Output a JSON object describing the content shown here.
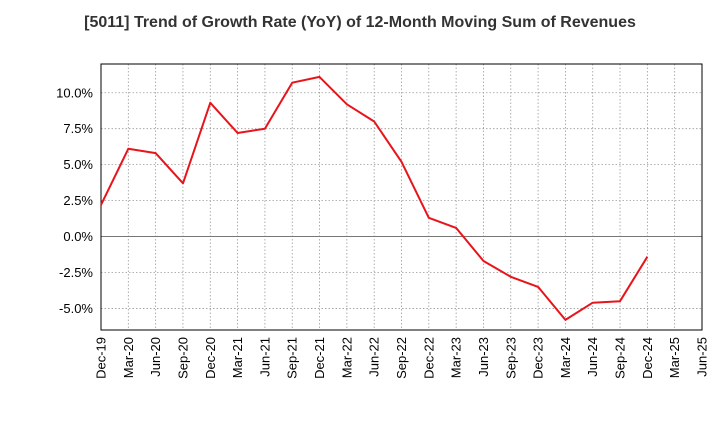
{
  "chart_data": {
    "type": "line",
    "title": "[5011]  Trend of Growth Rate (YoY) of 12-Month Moving Sum of Revenues",
    "xlabel": "",
    "ylabel": "",
    "x_ticks": [
      "Dec-19",
      "Mar-20",
      "Jun-20",
      "Sep-20",
      "Dec-20",
      "Mar-21",
      "Jun-21",
      "Sep-21",
      "Dec-21",
      "Mar-22",
      "Jun-22",
      "Sep-22",
      "Dec-22",
      "Mar-23",
      "Jun-23",
      "Sep-23",
      "Dec-23",
      "Mar-24",
      "Jun-24",
      "Sep-24",
      "Dec-24",
      "Mar-25",
      "Jun-25"
    ],
    "y_ticks": [
      {
        "value": 10.0,
        "label": "10.0%"
      },
      {
        "value": 7.5,
        "label": "7.5%"
      },
      {
        "value": 5.0,
        "label": "5.0%"
      },
      {
        "value": 2.5,
        "label": "2.5%"
      },
      {
        "value": 0.0,
        "label": "0.0%"
      },
      {
        "value": -2.5,
        "label": "-2.5%"
      },
      {
        "value": -5.0,
        "label": "-5.0%"
      }
    ],
    "ylim": [
      -6.5,
      12.0
    ],
    "grid": true,
    "line_color": "#e8141b",
    "series": [
      {
        "x": [
          "Dec-19",
          "Mar-20",
          "Jun-20",
          "Sep-20",
          "Dec-20",
          "Mar-21",
          "Jun-21",
          "Sep-21",
          "Dec-21",
          "Mar-22",
          "Jun-22",
          "Sep-22",
          "Dec-22",
          "Mar-23",
          "Jun-23",
          "Sep-23",
          "Dec-23",
          "Mar-24",
          "Jun-24",
          "Sep-24",
          "Dec-24"
        ],
        "values": [
          2.2,
          6.1,
          5.8,
          3.7,
          9.3,
          7.2,
          7.5,
          10.7,
          11.1,
          9.2,
          8.0,
          5.2,
          1.3,
          0.6,
          -1.7,
          -2.8,
          -3.5,
          -5.8,
          -4.6,
          -4.5,
          -1.4
        ]
      }
    ]
  }
}
